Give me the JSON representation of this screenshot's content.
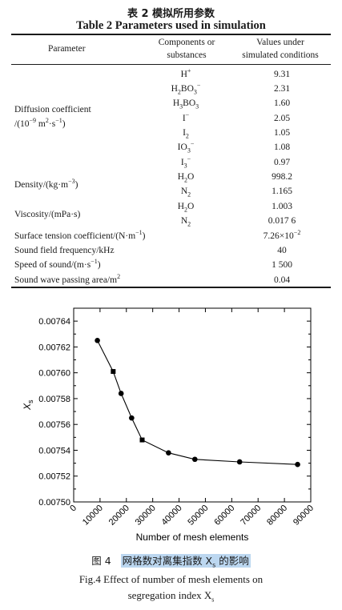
{
  "table": {
    "caption_cn": "表 2   模拟所用参数",
    "caption_en": "Table 2    Parameters used in simulation",
    "headers": {
      "parameter": "Parameter",
      "components": [
        "Components or",
        "substances"
      ],
      "values": [
        "Values under",
        "simulated conditions"
      ]
    },
    "groups": {
      "diffusion": [
        "Diffusion coefficient",
        "/(10",
        "−9",
        " m",
        "2",
        "·s",
        "−1",
        ")"
      ],
      "density": [
        "Density/(kg·m",
        "−3",
        ")"
      ],
      "viscosity": "Viscosity/(mPa·s)"
    },
    "rows": [
      {
        "base": "H",
        "sub": "",
        "sup": "+",
        "value": "9.31"
      },
      {
        "base": "H",
        "sub": "2",
        "mid": "BO",
        "sub2": "3",
        "sup": "−",
        "value": "2.31"
      },
      {
        "base": "H",
        "sub": "3",
        "mid": "BO",
        "sub2": "3",
        "sup": "",
        "value": "1.60"
      },
      {
        "base": "I",
        "sub": "",
        "sup": "−",
        "value": "2.05"
      },
      {
        "base": "I",
        "sub": "2",
        "sup": "",
        "value": "1.05"
      },
      {
        "base": "IO",
        "sub": "3",
        "sup": "−",
        "value": "1.08"
      },
      {
        "base": "I",
        "sub": "3",
        "sup": "−",
        "value": "0.97"
      },
      {
        "base": "H",
        "sub": "2",
        "mid": "O",
        "sup": "",
        "value": "998.2"
      },
      {
        "base": "N",
        "sub": "2",
        "sup": "",
        "value": "1.165"
      },
      {
        "base": "H",
        "sub": "2",
        "mid": "O",
        "sup": "",
        "value": "1.003"
      },
      {
        "base": "N",
        "sub": "2",
        "sup": "",
        "value": "0.017 6"
      }
    ],
    "single_rows": [
      {
        "label": [
          "Surface tension coefficient/(N·m",
          "−1",
          ")"
        ],
        "value": [
          "7.26×10",
          "−2"
        ]
      },
      {
        "label": [
          "Sound field frequency/kHz"
        ],
        "value": [
          "40"
        ]
      },
      {
        "label": [
          "Speed of sound/(m·s",
          "−1",
          ")"
        ],
        "value": [
          "1 500"
        ]
      },
      {
        "label": [
          "Sound wave passing area/m",
          "2",
          ""
        ],
        "value": [
          "0.04"
        ]
      }
    ]
  },
  "figure": {
    "caption_cn_prefix": "图 4",
    "caption_cn_highlight": "网格数对离集指数 X",
    "caption_cn_sub": "s",
    "caption_cn_suffix": " 的影响",
    "caption_en_line1": "Fig.4   Effect of number of mesh elements on",
    "caption_en_line2": "segregation index X",
    "caption_en_sub": "s"
  },
  "chart_data": {
    "type": "line",
    "xlabel": "Number of mesh elements",
    "ylabel": "X",
    "ylabel_sub": "s",
    "xlim": [
      0,
      90000
    ],
    "ylim": [
      0.0075,
      0.00765
    ],
    "x_ticks": [
      "0",
      "10000",
      "20000",
      "30000",
      "40000",
      "50000",
      "60000",
      "70000",
      "80000",
      "90000"
    ],
    "y_ticks": [
      "0.00750",
      "0.00752",
      "0.00754",
      "0.00756",
      "0.00758",
      "0.00760",
      "0.00762",
      "0.00764"
    ],
    "series": [
      {
        "x": [
          9000,
          15000,
          18000,
          22000,
          26000,
          36000,
          46000,
          63000,
          85000
        ],
        "y": [
          0.007625,
          0.007601,
          0.007584,
          0.007565,
          0.007548,
          0.007538,
          0.007533,
          0.007531,
          0.007529
        ],
        "markers": [
          "circle",
          "square",
          "circle",
          "circle",
          "square",
          "circle",
          "circle",
          "circle",
          "circle"
        ]
      }
    ]
  }
}
